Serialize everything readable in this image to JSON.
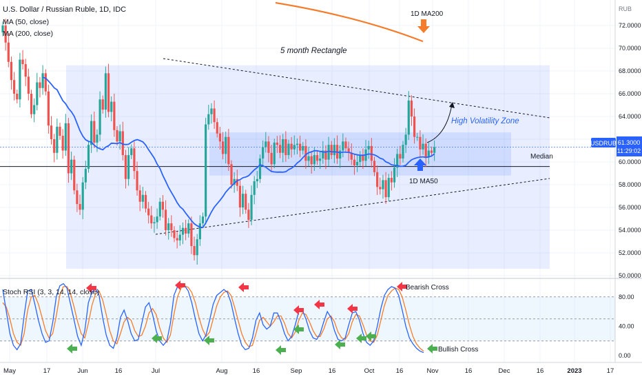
{
  "legend": {
    "symbol": "U.S. Dollar / Russian Ruble, 1D, IDC",
    "ma50": "MA (50, close)",
    "ma200": "MA (200, close)",
    "stoch": "Stoch RSI (3, 3, 14, 14, close)"
  },
  "price_axis": {
    "currency": "RUB",
    "ticks": [
      "72.0000",
      "70.0000",
      "68.0000",
      "66.0000",
      "64.0000",
      "62.0000",
      "60.0000",
      "58.0000",
      "56.0000",
      "54.0000",
      "52.0000",
      "50.0000"
    ],
    "symbol_tag": "USDRUB",
    "last_price": "61.3000",
    "countdown": "11:29:02"
  },
  "rsi_axis": {
    "ticks": [
      "80.00",
      "40.00",
      "0.00"
    ]
  },
  "time_axis": {
    "labels": [
      "May",
      "17",
      "Jun",
      "16",
      "Jul",
      "Aug",
      "16",
      "Sep",
      "16",
      "Oct",
      "16",
      "Nov",
      "16",
      "Dec",
      "16",
      "2023",
      "17"
    ]
  },
  "annotations": {
    "rectangle": "5 month Rectangle",
    "volatility": "High Volatility Zone",
    "median": "Median",
    "ma200": "1D MA200",
    "ma50": "1D MA50",
    "bearish": "Bearish Cross",
    "bullish": "Bullish Cross"
  },
  "colors": {
    "up": "#26a69a",
    "down": "#ef5350",
    "ma50": "#2962ff",
    "ma200": "#f57c2b",
    "rsi_k": "#2962ff",
    "rsi_d": "#f57c2b",
    "zone": "#2962ff"
  },
  "chart_data": {
    "type": "candlestick",
    "period": "1D",
    "y_unit": "RUB",
    "ylim": [
      49.5,
      73.5
    ],
    "rsi_ylim": [
      0,
      100
    ],
    "median": 59.6,
    "rectangle_outer": {
      "from": "2022-05-16",
      "to": "2022-11-27",
      "low": 50.6,
      "high": 68.5
    },
    "rectangle_inner": {
      "from": "2022-08-02",
      "to": "2022-11-19",
      "low": 58.8,
      "high": 62.6
    },
    "close": [
      72.0,
      70.5,
      68.8,
      67.2,
      66.0,
      65.5,
      69.0,
      68.6,
      67.5,
      66.0,
      64.2,
      65.0,
      67.0,
      66.5,
      67.8,
      66.2,
      63.2,
      62.0,
      60.8,
      63.1,
      62.3,
      61.0,
      63.4,
      59.0,
      60.2,
      57.5,
      56.3,
      55.8,
      58.2,
      59.4,
      61.5,
      63.6,
      61.7,
      62.4,
      65.5,
      64.6,
      67.8,
      64.4,
      65.3,
      62.8,
      61.8,
      62.7,
      60.6,
      58.5,
      60.6,
      61.2,
      59.2,
      57.5,
      56.5,
      57.1,
      55.9,
      55.3,
      54.6,
      54.7,
      55.2,
      56.5,
      55.8,
      54.0,
      54.6,
      54.0,
      53.3,
      53.1,
      53.6,
      54.2,
      53.7,
      54.6,
      52.6,
      51.8,
      53.2,
      54.6,
      55.2,
      63.3,
      64.2,
      64.7,
      63.5,
      62.5,
      61.8,
      60.7,
      62.2,
      59.8,
      58.0,
      58.5,
      57.9,
      56.0,
      57.2,
      55.8,
      54.9,
      57.1,
      58.3,
      58.5,
      60.3,
      61.3,
      61.8,
      60.8,
      59.8,
      61.7,
      61.5,
      60.8,
      62.0,
      60.6,
      61.6,
      61.1,
      61.5,
      61.6,
      61.0,
      61.4,
      60.1,
      60.5,
      59.8,
      60.6,
      60.1,
      60.3,
      61.0,
      60.2,
      61.5,
      60.6,
      61.5,
      60.3,
      61.0,
      61.8,
      61.2,
      60.8,
      60.2,
      59.7,
      60.0,
      60.6,
      60.1,
      61.1,
      61.4,
      60.1,
      59.1,
      57.8,
      57.6,
      58.4,
      56.9,
      58.6,
      58.2,
      59.5,
      60.7,
      60.3,
      61.5,
      62.4,
      65.4,
      64.0,
      62.2,
      62.2,
      61.1,
      61.6,
      60.4,
      61.0,
      60.8,
      61.3
    ],
    "ma50_1d": 60.6,
    "stoch_rsi": {
      "k": [
        90,
        60,
        30,
        14,
        8,
        16,
        55,
        88,
        90,
        70,
        48,
        30,
        18,
        20,
        45,
        80,
        95,
        98,
        92,
        70,
        48,
        26,
        14,
        34,
        72,
        86,
        92,
        82,
        52,
        28,
        14,
        10,
        24,
        52,
        62,
        48,
        30,
        20,
        22,
        44,
        66,
        72,
        56,
        34,
        20,
        14,
        20,
        44,
        82,
        94,
        96,
        95,
        88,
        72,
        50,
        30,
        20,
        28,
        48,
        70,
        82,
        86,
        90,
        86,
        72,
        50,
        30,
        14,
        8,
        10,
        24,
        48,
        58,
        42,
        36,
        40,
        58,
        58,
        46,
        30,
        20,
        26,
        42,
        60,
        62,
        50,
        34,
        24,
        22,
        30,
        46,
        60,
        52,
        34,
        22,
        20,
        24,
        42,
        58,
        60,
        48,
        30,
        18,
        14,
        20,
        40,
        64,
        82,
        90,
        94,
        92,
        82,
        62,
        40,
        24,
        16,
        10,
        6,
        4
      ],
      "d": [
        72,
        66,
        50,
        30,
        18,
        14,
        30,
        62,
        80,
        82,
        70,
        52,
        34,
        24,
        30,
        54,
        82,
        94,
        94,
        84,
        66,
        46,
        30,
        24,
        44,
        68,
        84,
        88,
        76,
        56,
        34,
        20,
        16,
        30,
        46,
        52,
        48,
        34,
        26,
        28,
        40,
        58,
        64,
        56,
        38,
        24,
        18,
        28,
        56,
        80,
        92,
        95,
        93,
        86,
        72,
        52,
        36,
        26,
        32,
        50,
        68,
        80,
        86,
        88,
        82,
        66,
        48,
        30,
        18,
        12,
        14,
        30,
        48,
        52,
        46,
        40,
        46,
        54,
        54,
        44,
        30,
        24,
        32,
        48,
        58,
        56,
        46,
        34,
        26,
        26,
        36,
        50,
        54,
        46,
        32,
        24,
        22,
        30,
        46,
        56,
        54,
        42,
        28,
        20,
        18,
        28,
        48,
        68,
        82,
        88,
        92,
        90,
        80,
        62,
        42,
        26,
        16,
        10,
        6
      ]
    },
    "rsi_bands": [
      20,
      50,
      80
    ]
  }
}
